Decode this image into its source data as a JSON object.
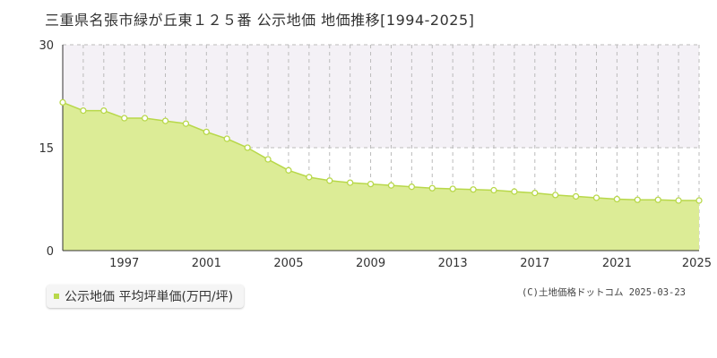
{
  "title": "三重県名張市緑が丘東１２５番 公示地価 地価推移[1994-2025]",
  "legend": {
    "label": "公示地価 平均坪単価(万円/坪)"
  },
  "copyright": "(C)土地価格ドットコム 2025-03-23",
  "colors": {
    "fill": "#dcec96",
    "line": "#b8d84a",
    "point_fill": "#ffffff",
    "grid": "#bbbbbb",
    "band": "#f4f1f6"
  },
  "chart_data": {
    "type": "area",
    "x": [
      1994,
      1995,
      1996,
      1997,
      1998,
      1999,
      2000,
      2001,
      2002,
      2003,
      2004,
      2005,
      2006,
      2007,
      2008,
      2009,
      2010,
      2011,
      2012,
      2013,
      2014,
      2015,
      2016,
      2017,
      2018,
      2019,
      2020,
      2021,
      2022,
      2023,
      2024,
      2025
    ],
    "values": [
      21.6,
      20.4,
      20.4,
      19.3,
      19.3,
      18.9,
      18.5,
      17.3,
      16.3,
      15.0,
      13.3,
      11.7,
      10.7,
      10.2,
      9.9,
      9.7,
      9.5,
      9.3,
      9.1,
      9.0,
      8.9,
      8.8,
      8.6,
      8.4,
      8.1,
      7.9,
      7.7,
      7.5,
      7.4,
      7.4,
      7.3,
      7.3
    ],
    "ylim": [
      0,
      30
    ],
    "yticks": [
      "0",
      "15",
      "30"
    ],
    "xticks": [
      "1997",
      "2001",
      "2005",
      "2009",
      "2013",
      "2017",
      "2021",
      "2025"
    ],
    "xtick_years": [
      1997,
      2001,
      2005,
      2009,
      2013,
      2017,
      2021,
      2025
    ],
    "grid": true
  }
}
